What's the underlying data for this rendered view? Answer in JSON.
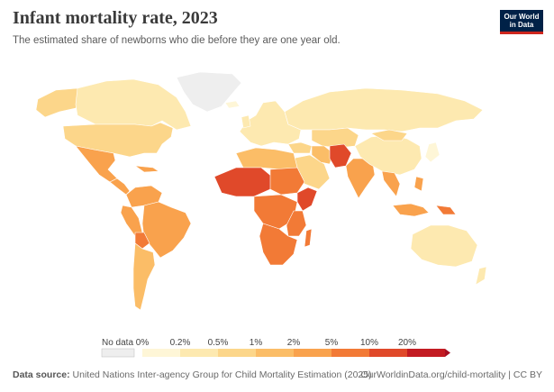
{
  "header": {
    "title": "Infant mortality rate, 2023",
    "subtitle": "The estimated share of newborns who die before they are one year old.",
    "logo_line1": "Our World",
    "logo_line2": "in Data"
  },
  "legend": {
    "no_data_label": "No data",
    "no_data_color": "#eeeeee",
    "bins": [
      {
        "label": "0%",
        "color": "#fef6d7"
      },
      {
        "label": "0.2%",
        "color": "#fde9b0"
      },
      {
        "label": "0.5%",
        "color": "#fcd68a"
      },
      {
        "label": "1%",
        "color": "#fbbd67"
      },
      {
        "label": "2%",
        "color": "#f9a24d"
      },
      {
        "label": "5%",
        "color": "#f27a36"
      },
      {
        "label": "10%",
        "color": "#e0492a"
      },
      {
        "label": "20%",
        "color": "#c31b22"
      }
    ],
    "overflow_color": "#a50f23"
  },
  "footer": {
    "source_label": "Data source:",
    "source_text": "United Nations Inter-agency Group for Child Mortality Estimation (2025)",
    "link_text": "OurWorldinData.org/child-mortality | CC BY"
  }
}
